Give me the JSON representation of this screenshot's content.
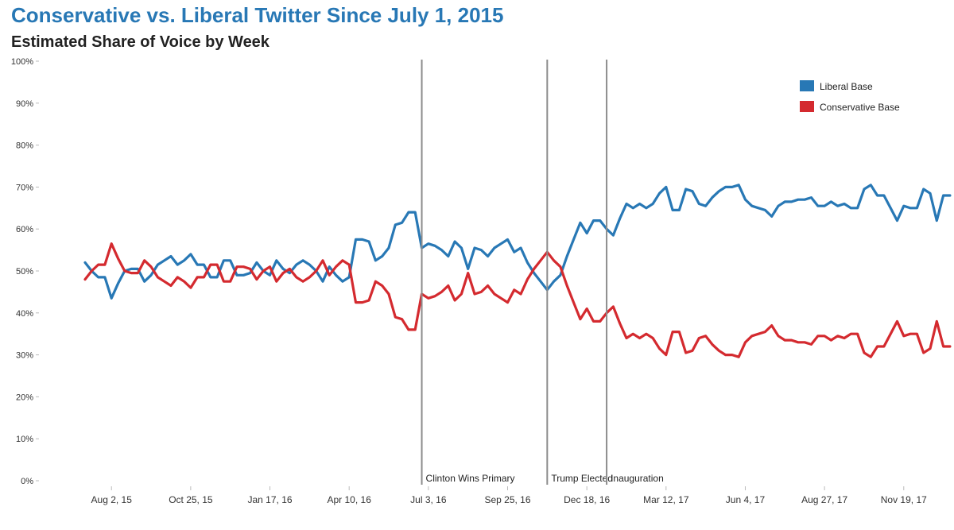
{
  "colors": {
    "liberal": "#2878b5",
    "conservative": "#d42a2f",
    "event_line": "#8c8c8c",
    "axis_text": "#333333"
  },
  "chart_data": {
    "type": "line",
    "title": "Conservative vs. Liberal Twitter Since July 1, 2015",
    "subtitle": "Estimated Share of Voice by Week",
    "xlabel": "",
    "ylabel": "",
    "ylim": [
      0,
      100
    ],
    "y_ticks": [
      "0%",
      "10%",
      "20%",
      "30%",
      "40%",
      "50%",
      "60%",
      "70%",
      "80%",
      "90%",
      "100%"
    ],
    "x_week_range": [
      0,
      128
    ],
    "x_ticks": [
      {
        "week": 4,
        "label": "Aug 2, 15"
      },
      {
        "week": 16,
        "label": "Oct 25, 15"
      },
      {
        "week": 28,
        "label": "Jan 17, 16"
      },
      {
        "week": 40,
        "label": "Apr 10, 16"
      },
      {
        "week": 52,
        "label": "Jul 3, 16"
      },
      {
        "week": 64,
        "label": "Sep 25, 16"
      },
      {
        "week": 76,
        "label": "Dec 18, 16"
      },
      {
        "week": 88,
        "label": "Mar 12, 17"
      },
      {
        "week": 100,
        "label": "Jun 4, 17"
      },
      {
        "week": 112,
        "label": "Aug 27, 17"
      },
      {
        "week": 124,
        "label": "Nov 19, 17"
      }
    ],
    "events": [
      {
        "week": 51,
        "label": "Clinton Wins Primary"
      },
      {
        "week": 70,
        "label": "Trump Elected"
      },
      {
        "week": 79,
        "label": "Inauguration"
      }
    ],
    "legend": {
      "position": "top-right"
    },
    "series": [
      {
        "name": "Liberal Base",
        "values": [
          52,
          50,
          48.5,
          48.5,
          43.5,
          47,
          50,
          50.5,
          50.5,
          47.5,
          49,
          51.5,
          52.5,
          53.5,
          51.5,
          52.5,
          54,
          51.5,
          51.5,
          48.5,
          48.5,
          52.5,
          52.5,
          49,
          49,
          49.5,
          52,
          50,
          49,
          52.5,
          50.5,
          49.5,
          51.5,
          52.5,
          51.5,
          50,
          47.5,
          51,
          49,
          47.5,
          48.5,
          57.5,
          57.5,
          57,
          52.5,
          53.5,
          55.5,
          61,
          61.5,
          64,
          64,
          55.5,
          56.5,
          56,
          55,
          53.5,
          57,
          55.5,
          50.5,
          55.5,
          55,
          53.5,
          55.5,
          56.5,
          57.5,
          54.5,
          55.5,
          52,
          49.5,
          47.5,
          45.5,
          47.5,
          49,
          53.5,
          57.5,
          61.5,
          59,
          62,
          62,
          60,
          58.5,
          62.5,
          66,
          65,
          66,
          65,
          66,
          68.5,
          70,
          64.5,
          64.5,
          69.5,
          69,
          66,
          65.5,
          67.5,
          69,
          70,
          70,
          70.5,
          67,
          65.5,
          65,
          64.5,
          63,
          65.5,
          66.5,
          66.5,
          67,
          67,
          67.5,
          65.5,
          65.5,
          66.5,
          65.5,
          66,
          65,
          65,
          69.5,
          70.5,
          68,
          68,
          65,
          62,
          65.5,
          65,
          65,
          69.5,
          68.5,
          62,
          68,
          68
        ]
      },
      {
        "name": "Conservative Base",
        "values": [
          48,
          50,
          51.5,
          51.5,
          56.5,
          53,
          50,
          49.5,
          49.5,
          52.5,
          51,
          48.5,
          47.5,
          46.5,
          48.5,
          47.5,
          46,
          48.5,
          48.5,
          51.5,
          51.5,
          47.5,
          47.5,
          51,
          51,
          50.5,
          48,
          50,
          51,
          47.5,
          49.5,
          50.5,
          48.5,
          47.5,
          48.5,
          50,
          52.5,
          49,
          51,
          52.5,
          51.5,
          42.5,
          42.5,
          43,
          47.5,
          46.5,
          44.5,
          39,
          38.5,
          36,
          36,
          44.5,
          43.5,
          44,
          45,
          46.5,
          43,
          44.5,
          49.5,
          44.5,
          45,
          46.5,
          44.5,
          43.5,
          42.5,
          45.5,
          44.5,
          48,
          50.5,
          52.5,
          54.5,
          52.5,
          51,
          46.5,
          42.5,
          38.5,
          41,
          38,
          38,
          40,
          41.5,
          37.5,
          34,
          35,
          34,
          35,
          34,
          31.5,
          30,
          35.5,
          35.5,
          30.5,
          31,
          34,
          34.5,
          32.5,
          31,
          30,
          30,
          29.5,
          33,
          34.5,
          35,
          35.5,
          37,
          34.5,
          33.5,
          33.5,
          33,
          33,
          32.5,
          34.5,
          34.5,
          33.5,
          34.5,
          34,
          35,
          35,
          30.5,
          29.5,
          32,
          32,
          35,
          38,
          34.5,
          35,
          35,
          30.5,
          31.5,
          38,
          32,
          32
        ]
      }
    ]
  }
}
